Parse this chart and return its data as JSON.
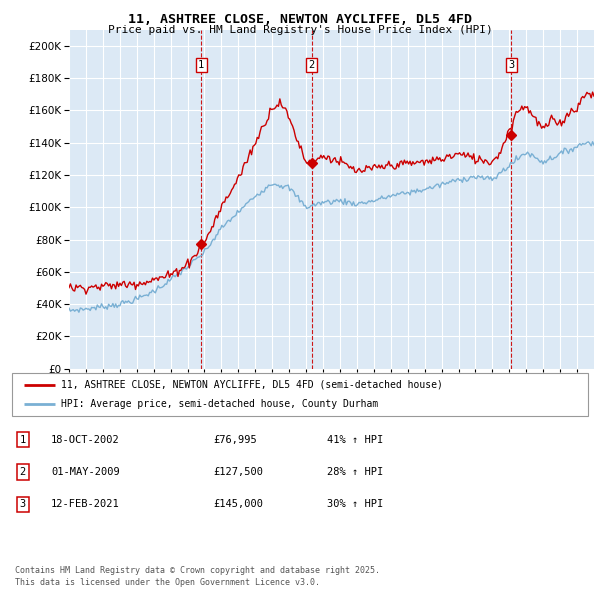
{
  "title_line1": "11, ASHTREE CLOSE, NEWTON AYCLIFFE, DL5 4FD",
  "title_line2": "Price paid vs. HM Land Registry's House Price Index (HPI)",
  "bg_color": "#dce9f5",
  "red_color": "#cc0000",
  "blue_color": "#7ab0d4",
  "grid_color": "#ffffff",
  "ylim": [
    0,
    210000
  ],
  "yticks": [
    0,
    20000,
    40000,
    60000,
    80000,
    100000,
    120000,
    140000,
    160000,
    180000,
    200000
  ],
  "sale_dates": [
    2002.8,
    2009.33,
    2021.12
  ],
  "sale_prices": [
    76995,
    127500,
    145000
  ],
  "sale_labels": [
    "1",
    "2",
    "3"
  ],
  "legend_red": "11, ASHTREE CLOSE, NEWTON AYCLIFFE, DL5 4FD (semi-detached house)",
  "legend_blue": "HPI: Average price, semi-detached house, County Durham",
  "table_data": [
    [
      "1",
      "18-OCT-2002",
      "£76,995",
      "41% ↑ HPI"
    ],
    [
      "2",
      "01-MAY-2009",
      "£127,500",
      "28% ↑ HPI"
    ],
    [
      "3",
      "12-FEB-2021",
      "£145,000",
      "30% ↑ HPI"
    ]
  ],
  "footer": "Contains HM Land Registry data © Crown copyright and database right 2025.\nThis data is licensed under the Open Government Licence v3.0.",
  "xmin": 1995,
  "xmax": 2026,
  "hpi_control_years": [
    1995,
    1996,
    1997,
    1998,
    1999,
    2000,
    2001,
    2002,
    2003,
    2004,
    2005,
    2006,
    2007,
    2008,
    2009,
    2010,
    2011,
    2012,
    2013,
    2014,
    2015,
    2016,
    2017,
    2018,
    2019,
    2020,
    2021,
    2022,
    2023,
    2024,
    2025.5
  ],
  "hpi_control_vals": [
    36000,
    37000,
    38500,
    40000,
    43000,
    48000,
    55000,
    63000,
    72000,
    87000,
    97000,
    107000,
    115000,
    112000,
    100000,
    103000,
    104000,
    102000,
    104000,
    107000,
    109000,
    111000,
    114000,
    117000,
    119000,
    117000,
    126000,
    134000,
    128000,
    133000,
    140000
  ],
  "price_control_years": [
    1995,
    1996,
    1997,
    1998,
    1999,
    2000,
    2001,
    2002,
    2003,
    2004,
    2005,
    2006,
    2007,
    2007.5,
    2008,
    2009,
    2009.4,
    2010,
    2011,
    2012,
    2013,
    2014,
    2015,
    2016,
    2017,
    2018,
    2019,
    2020,
    2020.5,
    2021,
    2021.5,
    2022,
    2022.5,
    2023,
    2023.5,
    2024,
    2024.5,
    2025,
    2025.5
  ],
  "price_control_vals": [
    50000,
    50500,
    51000,
    52000,
    53000,
    55000,
    58000,
    65000,
    78000,
    100000,
    118000,
    140000,
    162000,
    165000,
    155000,
    128000,
    127500,
    132000,
    128000,
    122000,
    124000,
    126000,
    127000,
    128000,
    130000,
    133000,
    130000,
    128000,
    135000,
    148000,
    160000,
    163000,
    155000,
    148000,
    154000,
    152000,
    158000,
    162000,
    170000
  ]
}
